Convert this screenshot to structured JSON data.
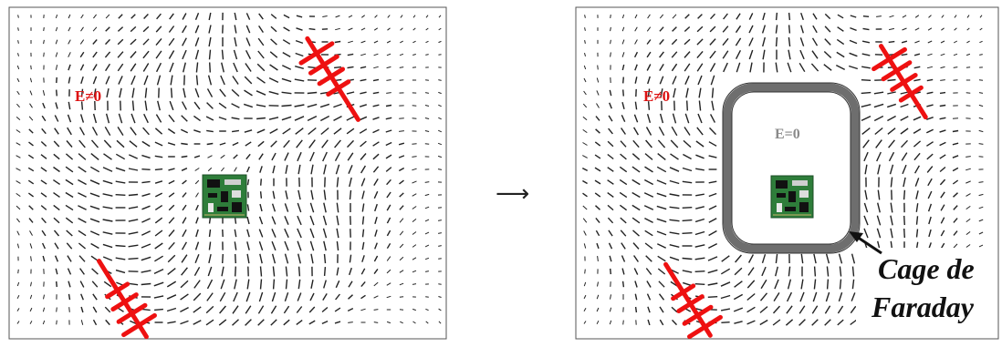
{
  "left_panel": {
    "field_label": "E≠0"
  },
  "transition_arrow": "⟶",
  "right_panel": {
    "field_label": "E≠0",
    "inside_label": "E=0",
    "cage_caption_line1": "Cage de",
    "cage_caption_line2": "Faraday"
  },
  "colors": {
    "antenna": "#ee1111",
    "label_red": "#dd1111",
    "cage_gray": "#6e6e6e",
    "inside_label_gray": "#8a8a8a",
    "arrow_field": "#222222",
    "board_green": "#2e7d3a"
  },
  "icons": [
    "antenna-icon",
    "circuit-board-icon",
    "field-arrow-icon"
  ]
}
